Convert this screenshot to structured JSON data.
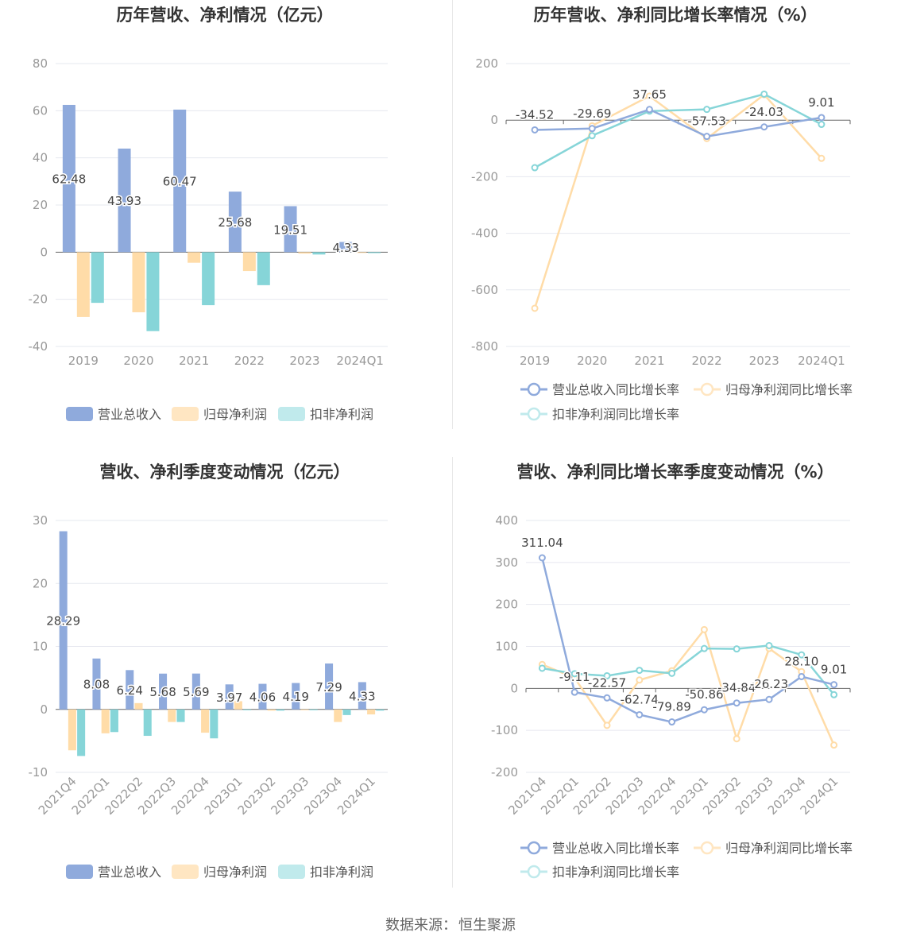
{
  "colors": {
    "revenue": "#8faadc",
    "net_profit": "#ffdca8",
    "deducted_profit": "#86d5d8",
    "revenue_light": "#c6d4ee",
    "net_profit_light": "#ffe6c2",
    "deducted_profit_light": "#c0eaec",
    "axis_text": "#999999",
    "grid": "#e6e8ef",
    "title": "#333333"
  },
  "source": {
    "label": "数据来源：",
    "value": "恒生聚源"
  },
  "chart_data": [
    {
      "id": "annual-amount",
      "type": "bar",
      "title": "历年营收、净利情况（亿元）",
      "categories": [
        "2019",
        "2020",
        "2021",
        "2022",
        "2023",
        "2024Q1"
      ],
      "ylim": [
        -40,
        80
      ],
      "yticks": [
        80,
        60,
        40,
        20,
        0,
        -20,
        -40
      ],
      "grid": true,
      "legend_position": "bottom",
      "series": [
        {
          "name": "营业总收入",
          "color_key": "revenue",
          "values": [
            62.48,
            43.93,
            60.47,
            25.68,
            19.51,
            4.33
          ],
          "labels": [
            "62.48",
            "43.93",
            "60.47",
            "25.68",
            "19.51",
            "4.33"
          ]
        },
        {
          "name": "归母净利润",
          "color_key": "net_profit",
          "values": [
            -27.5,
            -25.5,
            -4.5,
            -8.0,
            -0.6,
            -0.3
          ]
        },
        {
          "name": "扣非净利润",
          "color_key": "deducted_profit",
          "values": [
            -21.5,
            -33.5,
            -22.5,
            -14.0,
            -1.0,
            -0.4
          ]
        }
      ]
    },
    {
      "id": "annual-growth",
      "type": "line",
      "title": "历年营收、净利同比增长率情况（%）",
      "categories": [
        "2019",
        "2020",
        "2021",
        "2022",
        "2023",
        "2024Q1"
      ],
      "ylim": [
        -800,
        200
      ],
      "yticks": [
        200,
        0,
        -200,
        -400,
        -600,
        -800
      ],
      "grid": true,
      "legend_position": "bottom",
      "series": [
        {
          "name": "营业总收入同比增长率",
          "color_key": "revenue",
          "values": [
            -34.52,
            -29.69,
            37.65,
            -57.53,
            -24.03,
            9.01
          ],
          "labels": [
            "-34.52",
            "-29.69",
            "37.65",
            "-57.53",
            "-24.03",
            "9.01"
          ]
        },
        {
          "name": "归母净利润同比增长率",
          "color_key": "net_profit",
          "values": [
            -665,
            -20,
            85,
            -65,
            90,
            -135
          ]
        },
        {
          "name": "扣非净利润同比增长率",
          "color_key": "deducted_profit",
          "values": [
            -168,
            -55,
            32,
            38,
            92,
            -15
          ]
        }
      ]
    },
    {
      "id": "quarterly-amount",
      "type": "bar",
      "title": "营收、净利季度变动情况（亿元）",
      "categories": [
        "2021Q4",
        "2022Q1",
        "2022Q2",
        "2022Q3",
        "2022Q4",
        "2023Q1",
        "2023Q2",
        "2023Q3",
        "2023Q4",
        "2024Q1"
      ],
      "ylim": [
        -10,
        30
      ],
      "yticks": [
        30,
        20,
        10,
        0,
        -10
      ],
      "grid": true,
      "legend_position": "bottom",
      "series": [
        {
          "name": "营业总收入",
          "color_key": "revenue",
          "values": [
            28.29,
            8.08,
            6.24,
            5.68,
            5.69,
            3.97,
            4.06,
            4.19,
            7.29,
            4.33
          ],
          "labels": [
            "28.29",
            "8.08",
            "6.24",
            "5.68",
            "5.69",
            "3.97",
            "4.06",
            "4.19",
            "7.29",
            "4.33"
          ]
        },
        {
          "name": "归母净利润",
          "color_key": "net_profit",
          "values": [
            -6.5,
            -3.8,
            1.0,
            -2.0,
            -3.7,
            1.3,
            -0.2,
            -0.1,
            -2.0,
            -0.8
          ]
        },
        {
          "name": "扣非净利润",
          "color_key": "deducted_profit",
          "values": [
            -7.4,
            -3.6,
            -4.2,
            -2.0,
            -4.6,
            -0.1,
            -0.2,
            -0.1,
            -0.9,
            -0.2
          ]
        }
      ]
    },
    {
      "id": "quarterly-growth",
      "type": "line",
      "title": "营收、净利同比增长率季度变动情况（%）",
      "categories": [
        "2021Q4",
        "2022Q1",
        "2022Q2",
        "2022Q3",
        "2022Q4",
        "2023Q1",
        "2023Q2",
        "2023Q3",
        "2023Q4",
        "2024Q1"
      ],
      "ylim": [
        -200,
        400
      ],
      "yticks": [
        400,
        300,
        200,
        100,
        0,
        -100,
        -200
      ],
      "grid": true,
      "legend_position": "bottom",
      "series": [
        {
          "name": "营业总收入同比增长率",
          "color_key": "revenue",
          "values": [
            311.04,
            -9.11,
            -22.57,
            -62.74,
            -79.89,
            -50.86,
            -34.84,
            -26.23,
            28.1,
            9.01
          ],
          "labels": [
            "311.04",
            "-9.11",
            "-22.57",
            "-62.74",
            "-79.89",
            "-50.86",
            "-34.84",
            "-26.23",
            "28.10",
            "9.01"
          ]
        },
        {
          "name": "归母净利润同比增长率",
          "color_key": "net_profit",
          "values": [
            57,
            25,
            -88,
            20,
            42,
            140,
            -120,
            95,
            40,
            -135
          ]
        },
        {
          "name": "扣非净利润同比增长率",
          "color_key": "deducted_profit",
          "values": [
            48,
            35,
            30,
            43,
            36,
            95,
            94,
            102,
            80,
            -15
          ]
        }
      ]
    }
  ]
}
